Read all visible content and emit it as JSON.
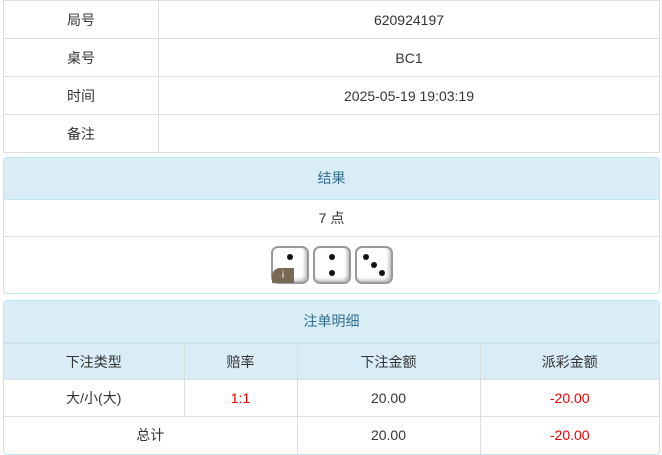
{
  "info": [
    {
      "label": "局号",
      "value": "620924197"
    },
    {
      "label": "桌号",
      "value": "BC1"
    },
    {
      "label": "时间",
      "value": "2025-05-19 19:03:19"
    },
    {
      "label": "备注",
      "value": ""
    }
  ],
  "result": {
    "title": "结果",
    "points": "7 点",
    "dice": [
      2,
      2,
      3
    ],
    "info_badge": "i"
  },
  "bets": {
    "title": "注单明细",
    "headers": [
      "下注类型",
      "赔率",
      "下注金额",
      "派彩金额"
    ],
    "rows": [
      {
        "type": "大/小(大)",
        "odds": "1:1",
        "amount": "20.00",
        "payout": "-20.00"
      }
    ],
    "total": {
      "label": "总计",
      "amount": "20.00",
      "payout": "-20.00"
    }
  },
  "colors": {
    "header_bg": "#d9edf7",
    "header_text": "#31708f",
    "negative": "#e00000"
  }
}
